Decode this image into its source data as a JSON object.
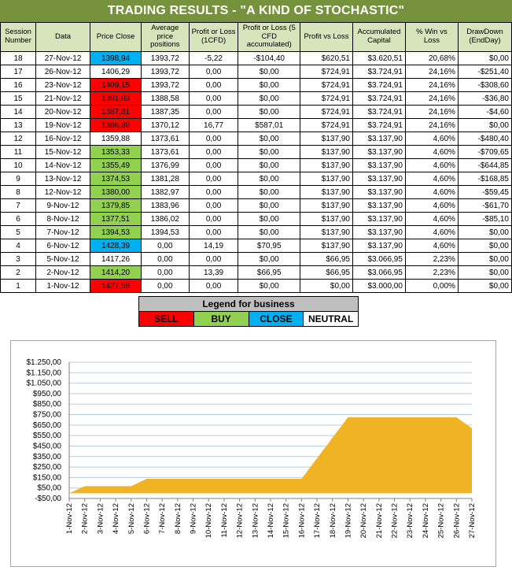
{
  "title": "TRADING RESULTS - \"A KIND OF STOCHASTIC\"",
  "table": {
    "headers": [
      "Session Number",
      "Data",
      "Price Close",
      "Average price positions",
      "Profit or Loss (1CFD)",
      "Profit or Loss (5 CFD accumulated)",
      "Profit vs Loss",
      "Accumulated Capital",
      "% Win vs Loss",
      "DrawDown (EndDay)"
    ],
    "rows": [
      {
        "session": "18",
        "date": "27-Nov-12",
        "price": "1398,94",
        "signal": "close",
        "avg": "1393,72",
        "pl1": "-5,22",
        "pl5": "-$104,40",
        "pvl": "$620,51",
        "capital": "$3.620,51",
        "win": "20,68%",
        "dd": "$0,00"
      },
      {
        "session": "17",
        "date": "26-Nov-12",
        "price": "1406,29",
        "signal": "neutral",
        "avg": "1393,72",
        "pl1": "0,00",
        "pl5": "$0,00",
        "pvl": "$724,91",
        "capital": "$3.724,91",
        "win": "24,16%",
        "dd": "-$251,40"
      },
      {
        "session": "16",
        "date": "23-Nov-12",
        "price": "1409,15",
        "signal": "sell",
        "avg": "1393,72",
        "pl1": "0,00",
        "pl5": "$0,00",
        "pvl": "$724,91",
        "capital": "$3.724,91",
        "win": "24,16%",
        "dd": "-$308,60"
      },
      {
        "session": "15",
        "date": "21-Nov-12",
        "price": "1391,03",
        "signal": "sell",
        "avg": "1388,58",
        "pl1": "0,00",
        "pl5": "$0,00",
        "pvl": "$724,91",
        "capital": "$3.724,91",
        "win": "24,16%",
        "dd": "-$36,80"
      },
      {
        "session": "14",
        "date": "20-Nov-12",
        "price": "1387,81",
        "signal": "sell",
        "avg": "1387,35",
        "pl1": "0,00",
        "pl5": "$0,00",
        "pvl": "$724,91",
        "capital": "$3.724,91",
        "win": "24,16%",
        "dd": "-$4,60"
      },
      {
        "session": "13",
        "date": "19-Nov-12",
        "price": "1386,89",
        "signal": "sell",
        "avg": "1370,12",
        "pl1": "16,77",
        "pl5": "$587,01",
        "pvl": "$724,91",
        "capital": "$3.724,91",
        "win": "24,16%",
        "dd": "$0,00"
      },
      {
        "session": "12",
        "date": "16-Nov-12",
        "price": "1359,88",
        "signal": "neutral",
        "avg": "1373,61",
        "pl1": "0,00",
        "pl5": "$0,00",
        "pvl": "$137,90",
        "capital": "$3.137,90",
        "win": "4,60%",
        "dd": "-$480,40"
      },
      {
        "session": "11",
        "date": "15-Nov-12",
        "price": "1353,33",
        "signal": "buy",
        "avg": "1373,61",
        "pl1": "0,00",
        "pl5": "$0,00",
        "pvl": "$137,90",
        "capital": "$3.137,90",
        "win": "4,60%",
        "dd": "-$709,65"
      },
      {
        "session": "10",
        "date": "14-Nov-12",
        "price": "1355,49",
        "signal": "buy",
        "avg": "1376,99",
        "pl1": "0,00",
        "pl5": "$0,00",
        "pvl": "$137,90",
        "capital": "$3.137,90",
        "win": "4,60%",
        "dd": "-$644,85"
      },
      {
        "session": "9",
        "date": "13-Nov-12",
        "price": "1374,53",
        "signal": "buy",
        "avg": "1381,28",
        "pl1": "0,00",
        "pl5": "$0,00",
        "pvl": "$137,90",
        "capital": "$3.137,90",
        "win": "4,60%",
        "dd": "-$168,85"
      },
      {
        "session": "8",
        "date": "12-Nov-12",
        "price": "1380,00",
        "signal": "buy",
        "avg": "1382,97",
        "pl1": "0,00",
        "pl5": "$0,00",
        "pvl": "$137,90",
        "capital": "$3.137,90",
        "win": "4,60%",
        "dd": "-$59,45"
      },
      {
        "session": "7",
        "date": "9-Nov-12",
        "price": "1379,85",
        "signal": "buy",
        "avg": "1383,96",
        "pl1": "0,00",
        "pl5": "$0,00",
        "pvl": "$137,90",
        "capital": "$3.137,90",
        "win": "4,60%",
        "dd": "-$61,70"
      },
      {
        "session": "6",
        "date": "8-Nov-12",
        "price": "1377,51",
        "signal": "buy",
        "avg": "1386,02",
        "pl1": "0,00",
        "pl5": "$0,00",
        "pvl": "$137,90",
        "capital": "$3.137,90",
        "win": "4,60%",
        "dd": "-$85,10"
      },
      {
        "session": "5",
        "date": "7-Nov-12",
        "price": "1394,53",
        "signal": "buy",
        "avg": "1394,53",
        "pl1": "0,00",
        "pl5": "$0,00",
        "pvl": "$137,90",
        "capital": "$3.137,90",
        "win": "4,60%",
        "dd": "$0,00"
      },
      {
        "session": "4",
        "date": "6-Nov-12",
        "price": "1428,39",
        "signal": "close",
        "avg": "0,00",
        "pl1": "14,19",
        "pl5": "$70,95",
        "pvl": "$137,90",
        "capital": "$3.137,90",
        "win": "4,60%",
        "dd": "$0,00"
      },
      {
        "session": "3",
        "date": "5-Nov-12",
        "price": "1417,26",
        "signal": "neutral",
        "avg": "0,00",
        "pl1": "0,00",
        "pl5": "$0,00",
        "pvl": "$66,95",
        "capital": "$3.066,95",
        "win": "2,23%",
        "dd": "$0,00"
      },
      {
        "session": "2",
        "date": "2-Nov-12",
        "price": "1414,20",
        "signal": "buy",
        "avg": "0,00",
        "pl1": "13,39",
        "pl5": "$66,95",
        "pvl": "$66,95",
        "capital": "$3.066,95",
        "win": "2,23%",
        "dd": "$0,00"
      },
      {
        "session": "1",
        "date": "1-Nov-12",
        "price": "1427,59",
        "signal": "sell",
        "avg": "0,00",
        "pl1": "0,00",
        "pl5": "$0,00",
        "pvl": "$0,00",
        "capital": "$3.000,00",
        "win": "0,00%",
        "dd": "$0,00"
      }
    ]
  },
  "legend": {
    "title": "Legend for business",
    "items": [
      {
        "label": "SELL",
        "color": "#ff0000"
      },
      {
        "label": "BUY",
        "color": "#92d050"
      },
      {
        "label": "CLOSE",
        "color": "#00b0f0"
      },
      {
        "label": "NEUTRAL",
        "color": "#ffffff"
      }
    ]
  },
  "colors": {
    "title_bar": "#77923c",
    "header": "#d7e4bc",
    "area_fill": "#f0b323",
    "grid": "#b8cce4"
  },
  "chart_data": {
    "type": "area",
    "title": "",
    "xlabel": "",
    "ylabel": "",
    "x": [
      "1-Nov-12",
      "2-Nov-12",
      "3-Nov-12",
      "4-Nov-12",
      "5-Nov-12",
      "6-Nov-12",
      "7-Nov-12",
      "8-Nov-12",
      "9-Nov-12",
      "10-Nov-12",
      "11-Nov-12",
      "12-Nov-12",
      "13-Nov-12",
      "14-Nov-12",
      "15-Nov-12",
      "16-Nov-12",
      "17-Nov-12",
      "18-Nov-12",
      "19-Nov-12",
      "20-Nov-12",
      "21-Nov-12",
      "22-Nov-12",
      "23-Nov-12",
      "24-Nov-12",
      "25-Nov-12",
      "26-Nov-12",
      "27-Nov-12"
    ],
    "values": [
      0,
      66.95,
      66.95,
      66.95,
      66.95,
      137.9,
      137.9,
      137.9,
      137.9,
      137.9,
      137.9,
      137.9,
      137.9,
      137.9,
      137.9,
      137.9,
      333.57,
      529.24,
      724.91,
      724.91,
      724.91,
      724.91,
      724.91,
      724.91,
      724.91,
      724.91,
      620.51
    ],
    "ylim": [
      -50,
      1250
    ],
    "yticks": [
      -50,
      50,
      150,
      250,
      350,
      450,
      550,
      650,
      750,
      850,
      950,
      1050,
      1150,
      1250
    ],
    "ytick_labels": [
      "-$50,00",
      "$50,00",
      "$150,00",
      "$250,00",
      "$350,00",
      "$450,00",
      "$550,00",
      "$650,00",
      "$750,00",
      "$850,00",
      "$950,00",
      "$1.050,00",
      "$1.150,00",
      "$1.250,00"
    ],
    "grid": true,
    "legend": "none"
  }
}
